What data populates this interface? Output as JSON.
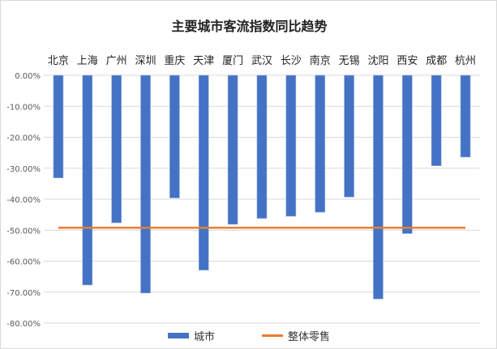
{
  "chart_data": {
    "type": "bar",
    "title": "主要城市客流指数同比趋势",
    "categories": [
      "北京",
      "上海",
      "广州",
      "深圳",
      "重庆",
      "天津",
      "厦门",
      "武汉",
      "长沙",
      "南京",
      "无锡",
      "沈阳",
      "西安",
      "成都",
      "杭州"
    ],
    "series": [
      {
        "name": "城市",
        "type": "bar",
        "color": "#4472c4",
        "values": [
          -33.1,
          -67.7,
          -47.6,
          -70.3,
          -39.6,
          -62.9,
          -48.1,
          -46.2,
          -45.5,
          -44.2,
          -39.3,
          -72.2,
          -51.1,
          -29.2,
          -26.4
        ]
      },
      {
        "name": "整体零售",
        "type": "line",
        "color": "#ed7d31",
        "value": -49.2
      }
    ],
    "yticks": [
      "0.00%",
      "-10.00%",
      "-20.00%",
      "-30.00%",
      "-40.00%",
      "-50.00%",
      "-60.00%",
      "-70.00%",
      "-80.00%"
    ],
    "ylim": [
      -80,
      0
    ],
    "xlabel": "",
    "ylabel": "",
    "grid": true,
    "legend": "bottom"
  }
}
